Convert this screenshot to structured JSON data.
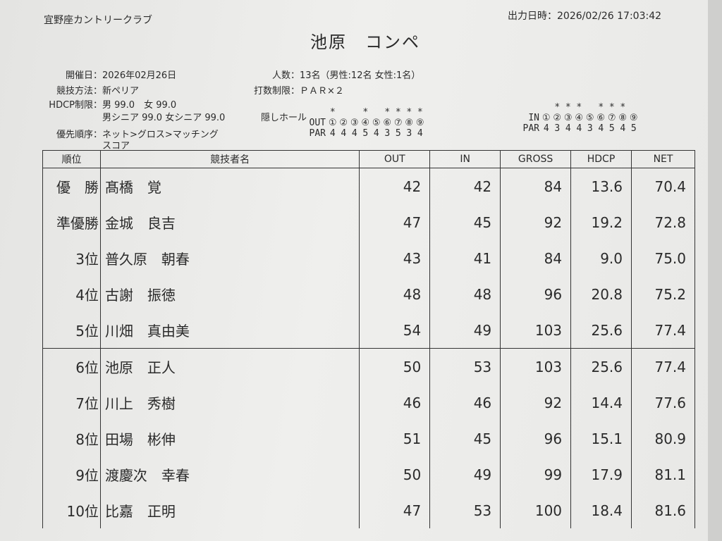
{
  "header": {
    "club": "宜野座カントリークラブ",
    "printed": "出力日時：2026/02/26 17:03:42",
    "title": "池原　コンペ"
  },
  "info": {
    "date_label": "開催日：",
    "date": "2026年02月26日",
    "count_label": "人数：",
    "count": "13名（男性:12名 女性:1名）",
    "method_label": "競技方法：",
    "method": "新ペリア",
    "limit_label": "打数制限：",
    "limit": "ＰＡＲ×２",
    "hdcp_label": "HDCP制限：",
    "hdcp1": "男 99.0　女 99.0",
    "hdcp2": "男シニア 99.0 女シニア 99.0",
    "hidden_label": "隠しホール",
    "priority_label": "優先順序：",
    "priority1": "ネット>グロス>マッチング",
    "priority2": "スコア"
  },
  "holes": {
    "out_label": "OUT",
    "in_label": "IN",
    "par_label": "PAR",
    "numbers": [
      "①",
      "②",
      "③",
      "④",
      "⑤",
      "⑥",
      "⑦",
      "⑧",
      "⑨"
    ],
    "out_par": [
      "4",
      "4",
      "4",
      "5",
      "4",
      "3",
      "5",
      "3",
      "4"
    ],
    "out_hidden": [
      "*",
      "",
      "",
      "*",
      "",
      "*",
      "*",
      "*",
      "*"
    ],
    "in_par": [
      "4",
      "3",
      "4",
      "4",
      "3",
      "4",
      "5",
      "4",
      "5"
    ],
    "in_hidden": [
      "",
      "*",
      "*",
      "*",
      "",
      "*",
      "*",
      "*",
      ""
    ]
  },
  "table": {
    "headers": [
      "順位",
      "競技者名",
      "OUT",
      "IN",
      "GROSS",
      "HDCP",
      "NET"
    ],
    "rows": [
      [
        "優　勝",
        "髙橋　覚",
        "42",
        "42",
        "84",
        "13.6",
        "70.4"
      ],
      [
        "準優勝",
        "金城　良吉",
        "47",
        "45",
        "92",
        "19.2",
        "72.8"
      ],
      [
        "3位",
        "普久原　朝春",
        "43",
        "41",
        "84",
        "9.0",
        "75.0"
      ],
      [
        "4位",
        "古謝　振徳",
        "48",
        "48",
        "96",
        "20.8",
        "75.2"
      ],
      [
        "5位",
        "川畑　真由美",
        "54",
        "49",
        "103",
        "25.6",
        "77.4"
      ],
      [
        "6位",
        "池原　正人",
        "50",
        "53",
        "103",
        "25.6",
        "77.4"
      ],
      [
        "7位",
        "川上　秀樹",
        "46",
        "46",
        "92",
        "14.4",
        "77.6"
      ],
      [
        "8位",
        "田場　彬伸",
        "51",
        "45",
        "96",
        "15.1",
        "80.9"
      ],
      [
        "9位",
        "渡慶次　幸春",
        "50",
        "49",
        "99",
        "17.9",
        "81.1"
      ],
      [
        "10位",
        "比嘉　正明",
        "47",
        "53",
        "100",
        "18.4",
        "81.6"
      ]
    ]
  }
}
